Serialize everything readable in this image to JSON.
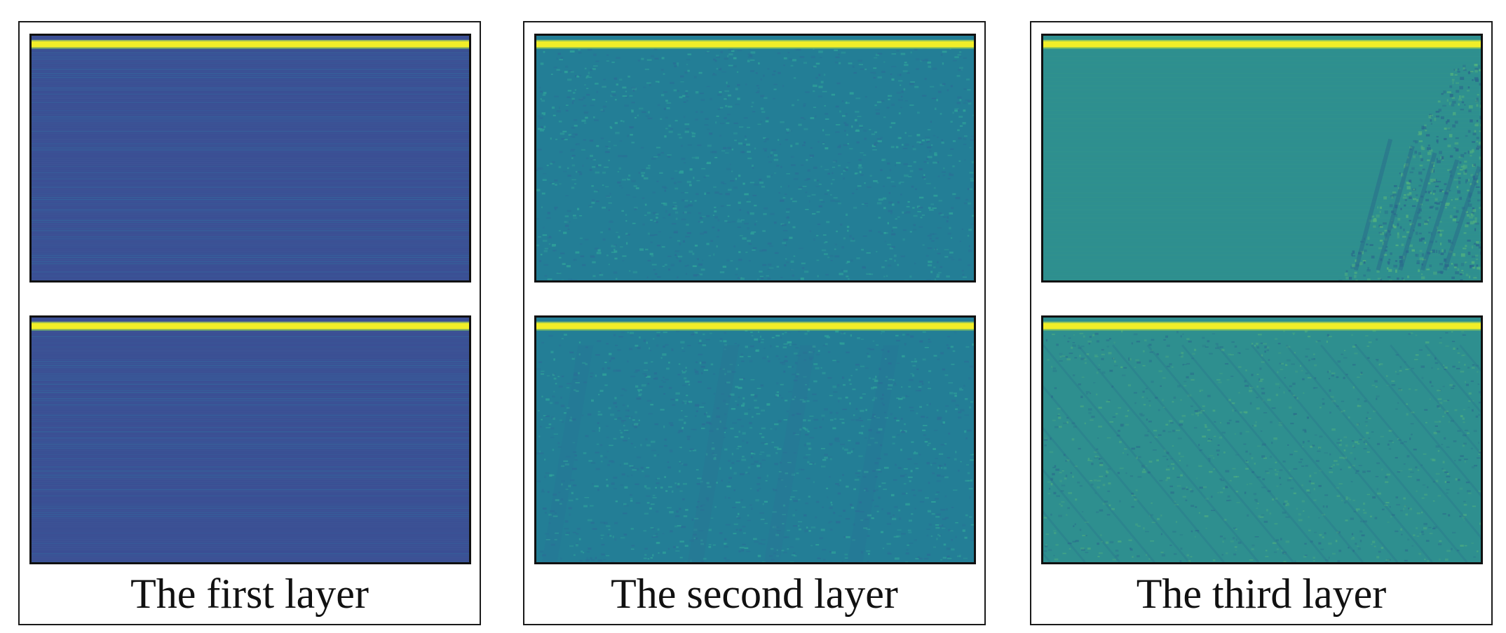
{
  "panels": [
    {
      "caption": "The first layer",
      "colors": {
        "base": "#3b4f94",
        "alt": "#2f7aa6",
        "mid": "#3e5e9a",
        "band": "#f1ee28"
      },
      "maps": [
        "first-layer-top-map",
        "first-layer-bottom-map"
      ]
    },
    {
      "caption": "The second layer",
      "colors": {
        "base": "#237e96",
        "alt": "#2fa39a",
        "mid": "#2a6f96",
        "band": "#f1ee28"
      },
      "maps": [
        "second-layer-top-map",
        "second-layer-bottom-map"
      ]
    },
    {
      "caption": "The third layer",
      "colors": {
        "base": "#2e8f8f",
        "alt": "#4fb07f",
        "mid": "#2a6a8c",
        "band": "#f1ee28"
      },
      "maps": [
        "third-layer-top-map",
        "third-layer-bottom-map"
      ]
    }
  ]
}
